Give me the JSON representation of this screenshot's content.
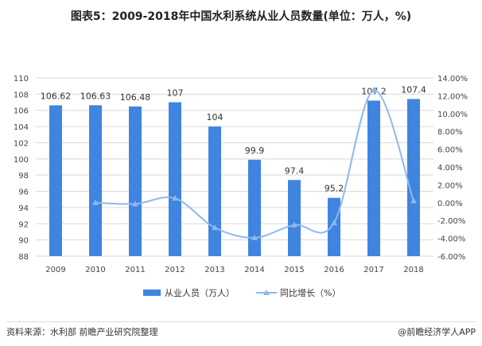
{
  "title": "图表5：2009-2018年中国水利系统从业人员数量(单位：万人，%)",
  "footer": {
    "source": "资料来源：水利部 前瞻产业研究院整理",
    "brand": "@前瞻经济学人APP"
  },
  "chart_data": {
    "type": "bar+line",
    "categories": [
      "2009",
      "2010",
      "2011",
      "2012",
      "2013",
      "2014",
      "2015",
      "2016",
      "2017",
      "2018"
    ],
    "series": [
      {
        "name": "从业人员（万人）",
        "type": "bar",
        "axis": "left",
        "color": "#3f85e0",
        "values": [
          106.62,
          106.63,
          106.48,
          107,
          104,
          99.9,
          97.4,
          95.2,
          107.2,
          107.4
        ],
        "labels": [
          "106.62",
          "106.63",
          "106.48",
          "107",
          "104",
          "99.9",
          "97.4",
          "95.2",
          "107.2",
          "107.4"
        ]
      },
      {
        "name": "同比增长（%）",
        "type": "line",
        "axis": "right",
        "color": "#8db8ee",
        "values": [
          null,
          0.01,
          -0.14,
          0.49,
          -2.8,
          -3.94,
          -2.5,
          -2.26,
          12.61,
          0.19
        ]
      }
    ],
    "left_axis": {
      "min": 88,
      "max": 110,
      "step": 2
    },
    "right_axis": {
      "min": -6,
      "max": 14,
      "step": 2,
      "format": "percent"
    },
    "grid": true,
    "legend": "bottom"
  }
}
